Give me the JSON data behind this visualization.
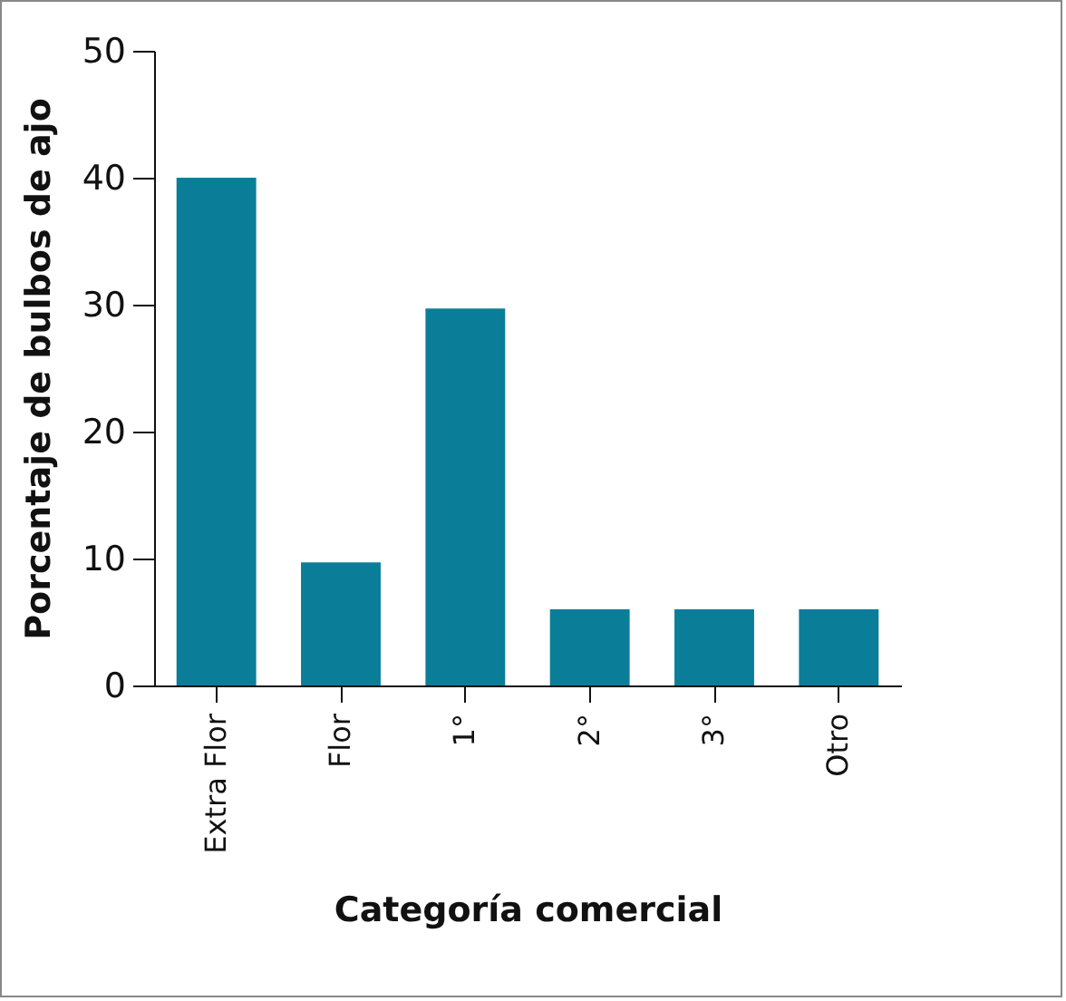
{
  "chart_data": {
    "type": "bar",
    "xlabel": "Categoría comercial",
    "ylabel": "Porcentaje de bulbos de ajo",
    "categories": [
      "Extra Flor",
      "Flor",
      "1°",
      "2°",
      "3°",
      "Otro"
    ],
    "values": [
      40,
      9.7,
      29.7,
      6,
      6,
      6
    ],
    "color": "#0a7e99",
    "ylim": [
      0,
      50
    ],
    "yticks": [
      0,
      10,
      20,
      30,
      40,
      50
    ],
    "grid": false
  }
}
